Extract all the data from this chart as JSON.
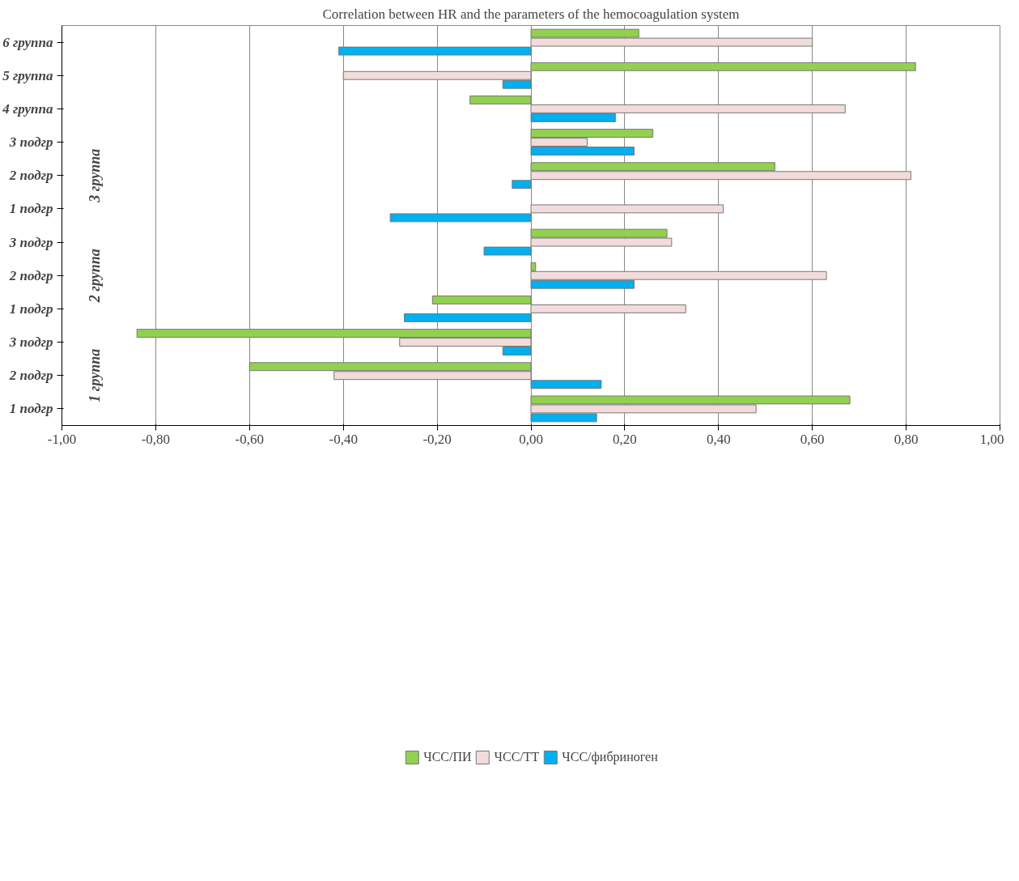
{
  "chart_data": {
    "type": "bar",
    "orientation": "horizontal",
    "title": "Correlation between HR and the parameters of the hemocoagulation system",
    "categories": [
      "6 группа",
      "5 группа",
      "4 группа",
      "3 подгр",
      "2 подгр",
      "1 подгр",
      "3 подгр",
      "2 подгр",
      "1 подгр",
      "3 подгр",
      "2 подгр",
      "1 подгр"
    ],
    "series": [
      {
        "name": "ЧСС/ПИ",
        "color": "#92d050",
        "values": [
          0.23,
          0.82,
          -0.13,
          0.26,
          0.52,
          null,
          0.29,
          0.01,
          -0.21,
          -0.84,
          -0.6,
          0.68
        ]
      },
      {
        "name": "ЧСС/ТТ",
        "color": "#f2dcdb",
        "values": [
          0.6,
          -0.4,
          0.67,
          0.12,
          0.81,
          0.41,
          0.3,
          0.63,
          0.33,
          -0.28,
          -0.42,
          0.48
        ]
      },
      {
        "name": "ЧСС/фибриноген",
        "color": "#00b0f0",
        "values": [
          -0.41,
          -0.06,
          0.18,
          0.22,
          -0.04,
          -0.3,
          -0.1,
          0.22,
          -0.27,
          -0.06,
          0.15,
          0.14
        ]
      }
    ],
    "annotations": [
      "3 группа",
      "2 группа",
      "1 группа"
    ],
    "xlim": [
      -1,
      1
    ],
    "xticks": [
      {
        "value": -1,
        "label": "-1,00"
      },
      {
        "value": -0.8,
        "label": "-0,80"
      },
      {
        "value": -0.6,
        "label": "-0,60"
      },
      {
        "value": -0.4,
        "label": "-0,40"
      },
      {
        "value": -0.2,
        "label": "-0,20"
      },
      {
        "value": 0,
        "label": "0,00"
      },
      {
        "value": 0.2,
        "label": "0,20"
      },
      {
        "value": 0.4,
        "label": "0,40"
      },
      {
        "value": 0.6,
        "label": "0,60"
      },
      {
        "value": 0.8,
        "label": "0,80"
      },
      {
        "value": 1,
        "label": "1,00"
      }
    ],
    "grid": "x",
    "legend": "bottom"
  }
}
